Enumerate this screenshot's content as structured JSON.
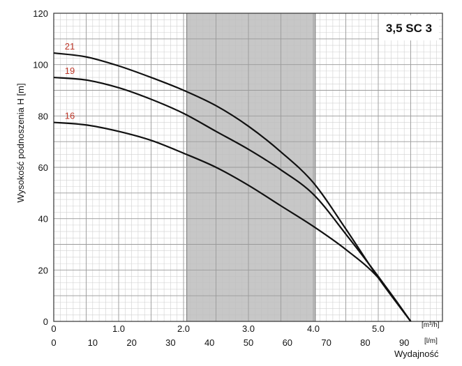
{
  "chart_data": {
    "type": "line",
    "title": "3,5 SC 3",
    "ylabel": "Wysokość podnoszenia H [m]",
    "xlabel": "Wydajność",
    "ylim": [
      0,
      120
    ],
    "yticks": [
      "0",
      "20",
      "40",
      "60",
      "80",
      "100",
      "120"
    ],
    "x_m3h": {
      "unit": "[m³/h]",
      "range": [
        0,
        6
      ],
      "ticks": [
        "0",
        "1.0",
        "2.0",
        "3.0",
        "4.0",
        "5.0"
      ]
    },
    "x_lm": {
      "unit": "[l/m]",
      "range": [
        0,
        100
      ],
      "ticks": [
        "0",
        "10",
        "20",
        "30",
        "40",
        "50",
        "60",
        "70",
        "80",
        "90"
      ]
    },
    "shaded_region_m3h": [
      2.05,
      4.03
    ],
    "grid": true,
    "colors": {
      "curve": "#111111",
      "label": "#c0392b",
      "shade": "#bdbdbd",
      "grid_major": "#9a9a9a",
      "grid_minor": "#d0d0d0"
    },
    "series": [
      {
        "name": "21",
        "points": [
          [
            0,
            104.5
          ],
          [
            0.5,
            103
          ],
          [
            1.0,
            99.5
          ],
          [
            1.5,
            95
          ],
          [
            2.0,
            90
          ],
          [
            2.5,
            84
          ],
          [
            3.0,
            76
          ],
          [
            3.5,
            66
          ],
          [
            4.0,
            54
          ],
          [
            4.5,
            36
          ],
          [
            5.0,
            17
          ],
          [
            5.5,
            0
          ]
        ]
      },
      {
        "name": "19",
        "points": [
          [
            0,
            95
          ],
          [
            0.5,
            94
          ],
          [
            1.0,
            91
          ],
          [
            1.5,
            86.5
          ],
          [
            2.0,
            81
          ],
          [
            2.5,
            74
          ],
          [
            3.0,
            67
          ],
          [
            3.5,
            59
          ],
          [
            4.0,
            49.5
          ],
          [
            4.5,
            34
          ],
          [
            5.0,
            17.5
          ],
          [
            5.5,
            0
          ]
        ]
      },
      {
        "name": "16",
        "points": [
          [
            0,
            77.5
          ],
          [
            0.5,
            76.5
          ],
          [
            1.0,
            74
          ],
          [
            1.5,
            70.5
          ],
          [
            2.0,
            65.5
          ],
          [
            2.5,
            60
          ],
          [
            3.0,
            53
          ],
          [
            3.5,
            45
          ],
          [
            4.0,
            37
          ],
          [
            4.5,
            28
          ],
          [
            5.0,
            17
          ],
          [
            5.5,
            0
          ]
        ]
      }
    ]
  }
}
